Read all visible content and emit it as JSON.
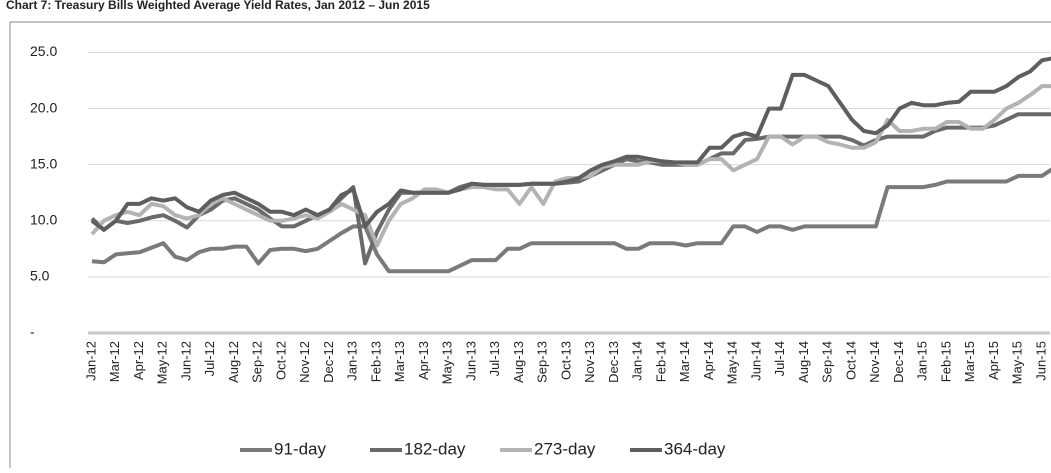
{
  "chart_data": {
    "type": "line",
    "title": "Chart 7: Treasury Bills Weighted Average Yield Rates, Jan 2012 – Jun 2015",
    "categories": [
      "Jan-12",
      null,
      "Mar-12",
      null,
      "Apr-12",
      null,
      "May-12",
      null,
      "Jun-12",
      null,
      "Jul-12",
      null,
      "Aug-12",
      null,
      "Sep-12",
      null,
      "Oct-12",
      null,
      "Nov-12",
      null,
      "Dec-12",
      null,
      "Jan-13",
      null,
      "Feb-13",
      null,
      "Mar-13",
      null,
      "Apr-13",
      null,
      "May-13",
      null,
      "Jun-13",
      null,
      "Jul-13",
      null,
      "Aug-13",
      null,
      "Sep-13",
      null,
      "Oct-13",
      null,
      "Nov-13",
      null,
      "Dec-13",
      null,
      "Jan-14",
      null,
      "Feb-14",
      null,
      "Mar-14",
      null,
      "Apr-14",
      null,
      "May-14",
      null,
      "Jun-14",
      null,
      "Jul-14",
      null,
      "Aug-14",
      null,
      "Sep-14",
      null,
      "Oct-14",
      null,
      "Nov-14",
      null,
      "Dec-14",
      null,
      "Jan-15",
      null,
      "Feb-15",
      null,
      "Mar-15",
      null,
      "Apr-15",
      null,
      "May-15",
      null,
      "Jun-15",
      null
    ],
    "series": [
      {
        "name": "91-day",
        "color": "#7a7a7a",
        "values": [
          6.4,
          6.3,
          7.0,
          7.1,
          7.2,
          7.6,
          8.0,
          6.8,
          6.5,
          7.2,
          7.5,
          7.5,
          7.7,
          7.7,
          6.2,
          7.4,
          7.5,
          7.5,
          7.3,
          7.5,
          8.2,
          8.9,
          9.5,
          9.5,
          7.0,
          5.5,
          5.5,
          5.5,
          5.5,
          5.5,
          5.5,
          6.0,
          6.5,
          6.5,
          6.5,
          7.5,
          7.5,
          8.0,
          8.0,
          8.0,
          8.0,
          8.0,
          8.0,
          8.0,
          8.0,
          7.5,
          7.5,
          8.0,
          8.0,
          8.0,
          7.8,
          8.0,
          8.0,
          8.0,
          9.5,
          9.5,
          9.0,
          9.5,
          9.5,
          9.2,
          9.5,
          9.5,
          9.5,
          9.5,
          9.5,
          9.5,
          9.5,
          13.0,
          13.0,
          13.0,
          13.0,
          13.2,
          13.5,
          13.5,
          13.5,
          13.5,
          13.5,
          13.5,
          14.0,
          14.0,
          14.0,
          14.7
        ]
      },
      {
        "name": "182-day",
        "color": "#6a6a6a",
        "values": [
          10.2,
          9.2,
          10.0,
          9.8,
          10.0,
          10.3,
          10.5,
          10.0,
          9.4,
          10.5,
          11.0,
          11.8,
          12.0,
          11.5,
          11.0,
          10.2,
          9.5,
          9.5,
          10.0,
          10.5,
          11.0,
          12.0,
          13.0,
          6.2,
          9.0,
          11.0,
          12.5,
          12.5,
          12.5,
          12.5,
          12.5,
          13.0,
          13.3,
          13.2,
          13.2,
          13.2,
          13.2,
          13.3,
          13.3,
          13.3,
          13.4,
          13.5,
          14.0,
          14.5,
          15.0,
          15.5,
          15.3,
          15.2,
          15.0,
          15.0,
          15.0,
          15.0,
          15.5,
          16.0,
          16.0,
          17.2,
          17.3,
          17.5,
          17.5,
          17.5,
          17.5,
          17.5,
          17.5,
          17.5,
          17.2,
          16.7,
          17.2,
          17.5,
          17.5,
          17.5,
          17.5,
          18.0,
          18.3,
          18.3,
          18.3,
          18.3,
          18.5,
          19.0,
          19.5,
          19.5,
          19.5,
          19.5
        ]
      },
      {
        "name": "273-day",
        "color": "#b3b3b3",
        "values": [
          8.8,
          10.0,
          10.5,
          10.8,
          10.5,
          11.5,
          11.3,
          10.5,
          10.2,
          10.5,
          11.5,
          12.0,
          11.5,
          11.0,
          10.5,
          10.0,
          10.0,
          10.2,
          10.5,
          10.2,
          10.8,
          11.5,
          11.0,
          10.5,
          7.8,
          10.0,
          11.5,
          12.0,
          12.8,
          12.8,
          12.5,
          12.8,
          13.0,
          13.0,
          12.8,
          12.8,
          11.5,
          13.0,
          11.5,
          13.5,
          13.8,
          13.8,
          14.0,
          14.8,
          15.0,
          15.0,
          15.0,
          15.3,
          15.3,
          15.2,
          15.0,
          15.0,
          15.5,
          15.5,
          14.5,
          15.0,
          15.5,
          17.5,
          17.5,
          16.8,
          17.5,
          17.5,
          17.0,
          16.8,
          16.5,
          16.5,
          17.0,
          19.0,
          18.0,
          18.0,
          18.2,
          18.2,
          18.8,
          18.8,
          18.2,
          18.2,
          19.0,
          20.0,
          20.5,
          21.2,
          22.0,
          22.0
        ]
      },
      {
        "name": "364-day",
        "color": "#5e5e5e",
        "values": [
          10.0,
          9.2,
          10.0,
          11.5,
          11.5,
          12.0,
          11.8,
          12.0,
          11.2,
          10.8,
          11.8,
          12.3,
          12.5,
          12.0,
          11.5,
          10.8,
          10.8,
          10.5,
          11.0,
          10.5,
          11.0,
          12.3,
          12.8,
          9.5,
          10.8,
          11.5,
          12.7,
          12.5,
          12.5,
          12.5,
          12.5,
          12.8,
          13.3,
          13.2,
          13.2,
          13.2,
          13.2,
          13.3,
          13.3,
          13.3,
          13.5,
          13.8,
          14.5,
          15.0,
          15.3,
          15.7,
          15.7,
          15.5,
          15.3,
          15.2,
          15.2,
          15.2,
          16.5,
          16.5,
          17.5,
          17.8,
          17.5,
          20.0,
          20.0,
          23.0,
          23.0,
          22.5,
          22.0,
          20.5,
          19.0,
          18.0,
          17.8,
          18.5,
          20.0,
          20.5,
          20.3,
          20.3,
          20.5,
          20.6,
          21.5,
          21.5,
          21.5,
          22.0,
          22.8,
          23.3,
          24.3,
          24.5
        ]
      }
    ],
    "ylim": [
      0,
      27
    ],
    "yticks": [
      {
        "value": 0,
        "label": "-"
      },
      {
        "value": 5,
        "label": "5.0"
      },
      {
        "value": 10,
        "label": "10.0"
      },
      {
        "value": 15,
        "label": "15.0"
      },
      {
        "value": 20,
        "label": "20.0"
      },
      {
        "value": 25,
        "label": "25.0"
      }
    ],
    "grid": true,
    "legend": "bottom"
  }
}
